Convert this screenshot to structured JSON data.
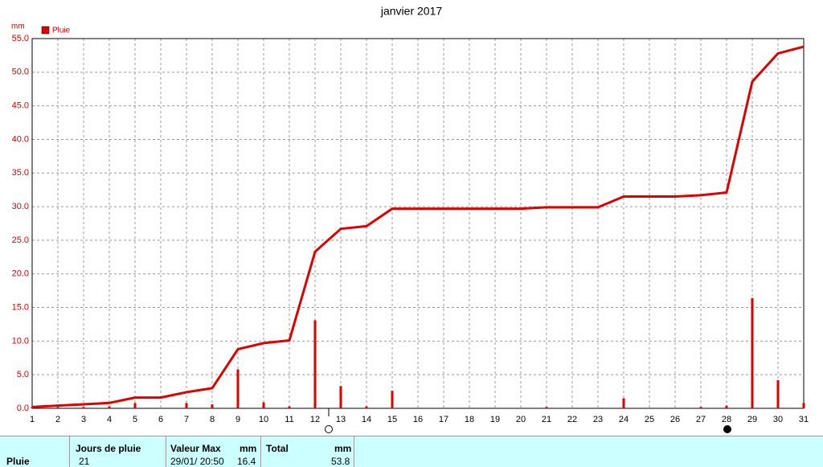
{
  "chart_data": {
    "type": "bar",
    "title": "janvier 2017",
    "y_label": "mm",
    "x": [
      1,
      2,
      3,
      4,
      5,
      6,
      7,
      8,
      9,
      10,
      11,
      12,
      13,
      14,
      15,
      16,
      17,
      18,
      19,
      20,
      21,
      22,
      23,
      24,
      25,
      26,
      27,
      28,
      29,
      30,
      31
    ],
    "series": [
      {
        "name": "Pluie",
        "type": "bar",
        "color": "#e00000",
        "values": [
          0.2,
          0.2,
          0.2,
          0.3,
          0.8,
          0,
          0.8,
          0.6,
          5.8,
          0.9,
          0.3,
          13.1,
          3.3,
          0.3,
          2.6,
          0,
          0,
          0,
          0,
          0,
          0.2,
          0,
          0,
          1.5,
          0,
          0,
          0.2,
          0.4,
          16.4,
          4.2,
          0.8
        ]
      },
      {
        "type": "line",
        "color": "#e00000",
        "values": [
          0.2,
          0.4,
          0.6,
          0.8,
          1.6,
          1.6,
          2.4,
          3.0,
          8.8,
          9.7,
          10.1,
          23.3,
          26.7,
          27.1,
          29.7,
          29.7,
          29.7,
          29.7,
          29.7,
          29.7,
          29.9,
          29.9,
          29.9,
          31.5,
          31.5,
          31.5,
          31.7,
          32.1,
          48.6,
          52.8,
          53.8
        ]
      }
    ],
    "xlim": [
      1,
      31
    ],
    "xticks": [
      1,
      2,
      3,
      4,
      5,
      6,
      7,
      8,
      9,
      10,
      11,
      12,
      13,
      14,
      15,
      16,
      17,
      18,
      19,
      20,
      21,
      22,
      23,
      24,
      25,
      26,
      27,
      28,
      29,
      30,
      31
    ],
    "ylim": [
      0,
      55
    ],
    "yticks": [
      {
        "value": 0,
        "label": "0.0"
      },
      {
        "value": 5,
        "label": "5.0"
      },
      {
        "value": 10,
        "label": "10.0"
      },
      {
        "value": 15,
        "label": "15.0"
      },
      {
        "value": 20,
        "label": "20.0"
      },
      {
        "value": 25,
        "label": "25.0"
      },
      {
        "value": 30,
        "label": "30.0"
      },
      {
        "value": 35,
        "label": "35.0"
      },
      {
        "value": 40,
        "label": "40.0"
      },
      {
        "value": 45,
        "label": "45.0"
      },
      {
        "value": 50,
        "label": "50.0"
      },
      {
        "value": 55,
        "label": "55.0"
      }
    ],
    "grid": true
  },
  "summary": {
    "row_label": "Pluie",
    "headers": [
      "Jours de pluie",
      "Valeur Max",
      "mm",
      "Total",
      "mm"
    ],
    "values": [
      "21",
      "29/01/ 20:50",
      "16.4",
      "53.8"
    ]
  }
}
